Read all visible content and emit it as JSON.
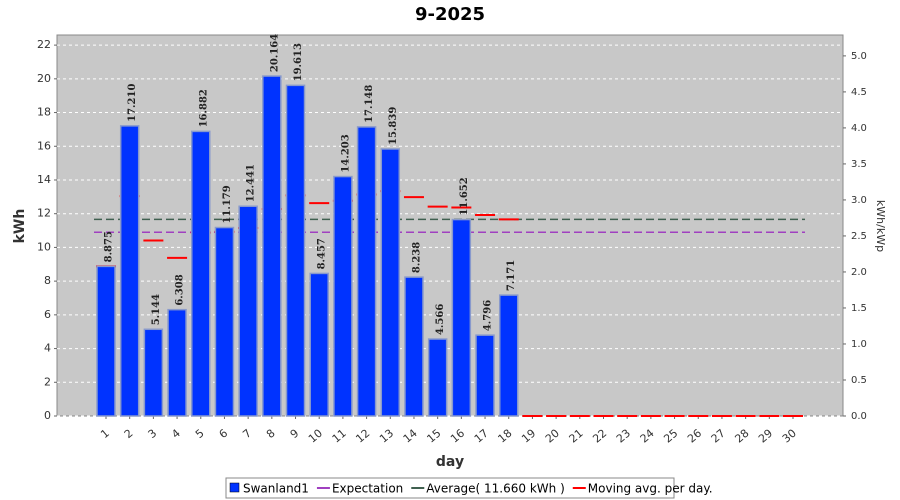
{
  "chart_data": {
    "type": "bar",
    "title": "9-2025",
    "xlabel": "day",
    "ylabel": "kWh",
    "y2label": "kWh/kWp",
    "categories": [
      "1",
      "2",
      "3",
      "4",
      "5",
      "6",
      "7",
      "8",
      "9",
      "10",
      "11",
      "12",
      "13",
      "14",
      "15",
      "16",
      "17",
      "18",
      "19",
      "20",
      "21",
      "22",
      "23",
      "24",
      "25",
      "26",
      "27",
      "28",
      "29",
      "30"
    ],
    "series": [
      {
        "name": "Swanland1",
        "color": "#0033ff",
        "kind": "bar",
        "values": [
          8.875,
          17.21,
          5.144,
          6.308,
          16.882,
          11.179,
          12.441,
          20.164,
          19.613,
          8.457,
          14.203,
          17.148,
          15.839,
          8.238,
          4.566,
          11.652,
          4.796,
          7.171,
          null,
          null,
          null,
          null,
          null,
          null,
          null,
          null,
          null,
          null,
          null,
          null
        ],
        "value_labels": [
          "8.875",
          "17.210",
          "5.144",
          "6.308",
          "16.882",
          "11.179",
          "12.441",
          "20.164",
          "19.613",
          "8.457",
          "14.203",
          "17.148",
          "15.839",
          "8.238",
          "4.566",
          "11.652",
          "4.796",
          "7.171",
          null,
          null,
          null,
          null,
          null,
          null,
          null,
          null,
          null,
          null,
          null,
          null
        ]
      },
      {
        "name": "Expectation",
        "color": "#a040c0",
        "kind": "ref",
        "value": 10.9
      },
      {
        "name": "Average( 11.660 kWh )",
        "color": "#406050",
        "kind": "ref",
        "value": 11.66
      },
      {
        "name": "Moving avg. per day.",
        "color": "#ff0000",
        "kind": "dash",
        "values": [
          8.875,
          13.04,
          10.41,
          9.38,
          10.88,
          10.93,
          11.15,
          12.28,
          13.09,
          12.63,
          12.77,
          13.14,
          13.34,
          12.98,
          12.42,
          12.37,
          11.92,
          11.66,
          0,
          0,
          0,
          0,
          0,
          0,
          0,
          0,
          0,
          0,
          0,
          0
        ]
      }
    ],
    "ylim": [
      0,
      22.6
    ],
    "yticks": [
      0,
      2,
      4,
      6,
      8,
      10,
      12,
      14,
      16,
      18,
      20,
      22
    ],
    "y2lim": [
      0,
      5.29
    ],
    "y2ticks": [
      {
        "value": 0,
        "label": "0.0"
      },
      0.5,
      {
        "value": 1,
        "label": "1.0"
      },
      1.5,
      {
        "value": 2,
        "label": "2.0"
      },
      2.5,
      {
        "value": 3,
        "label": "3.0"
      },
      3.5,
      {
        "value": 4,
        "label": "4.0"
      },
      4.5,
      {
        "value": 5,
        "label": "5.0"
      }
    ],
    "grid": true,
    "legend": "bottom"
  }
}
